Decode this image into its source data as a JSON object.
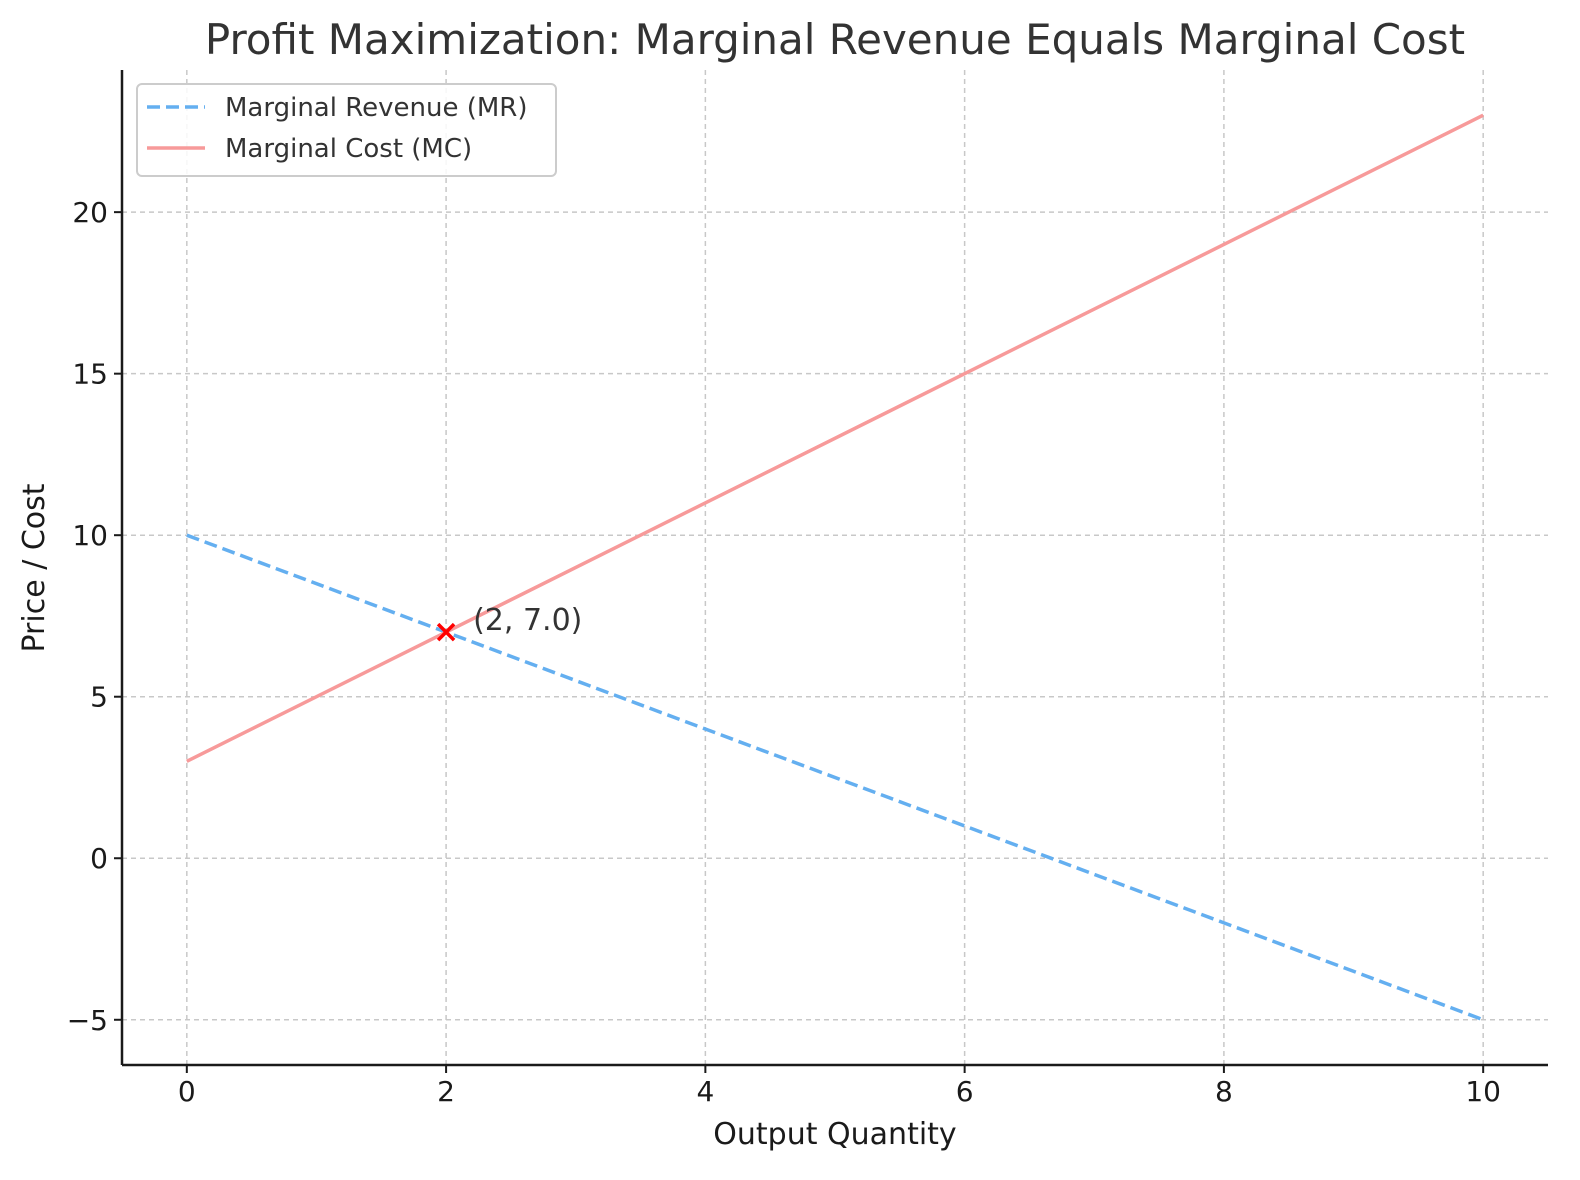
{
  "chart_data": {
    "type": "line",
    "title": "Profit Maximization: Marginal Revenue Equals Marginal Cost",
    "xlabel": "Output Quantity",
    "ylabel": "Price / Cost",
    "xlim": [
      -0.5,
      10.5
    ],
    "ylim": [
      -6.4,
      24.4
    ],
    "xticks": [
      0,
      2,
      4,
      6,
      8,
      10
    ],
    "xtick_labels": [
      "0",
      "2",
      "4",
      "6",
      "8",
      "10"
    ],
    "yticks": [
      -5,
      0,
      5,
      10,
      15,
      20
    ],
    "ytick_labels": [
      "−5",
      "0",
      "5",
      "10",
      "15",
      "20"
    ],
    "grid": true,
    "legend_position": "top-left",
    "series": [
      {
        "name": "Marginal Revenue (MR)",
        "x": [
          0,
          10
        ],
        "y": [
          10,
          -5
        ],
        "color": "#64aff0",
        "style": "dashed"
      },
      {
        "name": "Marginal Cost (MC)",
        "x": [
          0,
          10
        ],
        "y": [
          3,
          23
        ],
        "color": "#f79a9a",
        "style": "solid"
      }
    ],
    "marker": {
      "x": 2,
      "y": 7.0,
      "symbol": "x",
      "color": "#ff0000",
      "label": "(2, 7.0)"
    }
  }
}
